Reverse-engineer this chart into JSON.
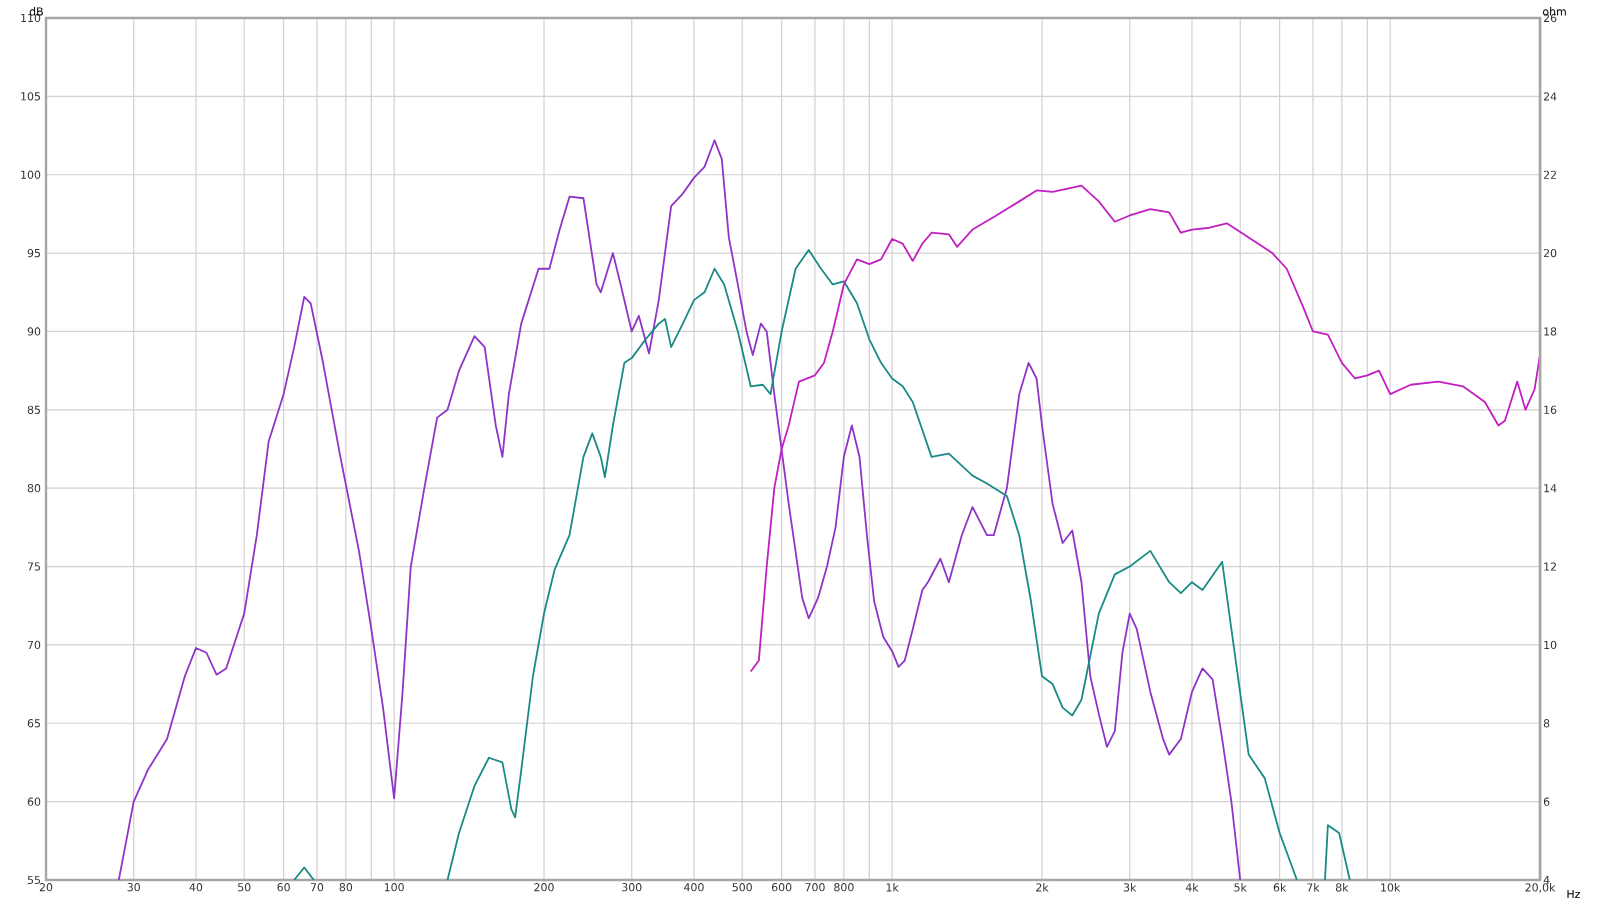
{
  "chart_data": {
    "type": "line",
    "xlabel": "Hz",
    "ylabel": "dB",
    "y2label": "ohm",
    "log": "x",
    "grid": true,
    "xlim": [
      20,
      20000
    ],
    "ylim": [
      55,
      110
    ],
    "y2lim": [
      4,
      26
    ],
    "xticks": [
      20,
      30,
      40,
      50,
      60,
      70,
      80,
      {
        "value": 90,
        "label": null
      },
      100,
      200,
      300,
      400,
      500,
      600,
      700,
      800,
      {
        "value": 900,
        "label": null
      },
      {
        "value": 1000,
        "label": "1k"
      },
      {
        "value": 2000,
        "label": "2k"
      },
      {
        "value": 3000,
        "label": "3k"
      },
      {
        "value": 4000,
        "label": "4k"
      },
      {
        "value": 5000,
        "label": "5k"
      },
      {
        "value": 6000,
        "label": "6k"
      },
      {
        "value": 7000,
        "label": "7k"
      },
      {
        "value": 8000,
        "label": "8k"
      },
      {
        "value": 9000,
        "label": null
      },
      {
        "value": 10000,
        "label": "10k"
      },
      {
        "value": 20000,
        "label": "20,0k"
      }
    ],
    "yticks": [
      55,
      60,
      65,
      70,
      75,
      80,
      85,
      90,
      95,
      100,
      105,
      110
    ],
    "y2ticks": [
      4,
      6,
      8,
      10,
      12,
      14,
      16,
      18,
      20,
      22,
      24,
      26
    ],
    "series": [
      {
        "color": "#8e35c8",
        "x": [
          28,
          30,
          32,
          35,
          38,
          40,
          42,
          44,
          46,
          50,
          53,
          56,
          60,
          63,
          66,
          68,
          72,
          78,
          85,
          90,
          95,
          100,
          104,
          108,
          115,
          122,
          128,
          135,
          145,
          152,
          160,
          165,
          170,
          180,
          195,
          205,
          215,
          225,
          240,
          255,
          260,
          275,
          285,
          300,
          310,
          325,
          340,
          360,
          380,
          400,
          420,
          440,
          455,
          470,
          490,
          510,
          525,
          545,
          560,
          580,
          620,
          660,
          680,
          710,
          740,
          770,
          800,
          830,
          860,
          890,
          920,
          960,
          1000,
          1030,
          1060,
          1100,
          1150,
          1180,
          1250,
          1300,
          1380,
          1450,
          1550,
          1600,
          1700,
          1800,
          1880,
          1950,
          2000,
          2100,
          2200,
          2300,
          2400,
          2500,
          2600,
          2700,
          2800,
          2900,
          3000,
          3100,
          3300,
          3500,
          3600,
          3800,
          4000,
          4200,
          4400,
          4600,
          4800,
          5000
        ],
        "values": [
          55,
          60,
          62,
          64,
          68,
          69.8,
          69.5,
          68.1,
          68.5,
          72,
          77,
          83,
          86,
          89,
          92.2,
          91.8,
          88,
          82,
          76,
          71,
          66,
          60.2,
          67,
          75,
          80,
          84.5,
          85,
          87.5,
          89.7,
          89,
          84,
          82,
          86,
          90.5,
          94,
          94,
          96.5,
          98.6,
          98.5,
          93,
          92.5,
          95,
          93,
          90,
          91,
          88.6,
          92,
          98,
          98.8,
          99.8,
          100.5,
          102.2,
          101,
          96,
          93,
          90,
          88.5,
          90.5,
          90,
          86,
          79,
          73,
          71.7,
          73,
          75,
          77.5,
          82,
          84,
          82,
          77,
          72.8,
          70.5,
          69.6,
          68.6,
          69,
          71,
          73.5,
          74,
          75.5,
          74,
          77,
          78.8,
          77,
          77,
          80,
          86,
          88,
          87,
          84,
          79,
          76.5,
          77.3,
          74,
          68,
          65.6,
          63.5,
          64.5,
          69.5,
          72,
          71,
          67,
          64,
          63,
          64,
          67,
          68.5,
          67.8,
          64,
          60,
          55
        ]
      },
      {
        "color": "#1a8a84",
        "x": [
          63,
          66,
          69,
          100,
          128,
          135,
          145,
          155,
          165,
          172,
          175,
          180,
          190,
          200,
          210,
          225,
          240,
          250,
          260,
          265,
          275,
          290,
          300,
          320,
          340,
          350,
          360,
          380,
          400,
          420,
          440,
          460,
          490,
          520,
          550,
          570,
          600,
          640,
          680,
          720,
          760,
          800,
          850,
          900,
          950,
          1000,
          1050,
          1100,
          1200,
          1300,
          1450,
          1550,
          1700,
          1800,
          1900,
          2000,
          2100,
          2200,
          2300,
          2400,
          2600,
          2800,
          3000,
          3300,
          3600,
          3800,
          4000,
          4200,
          4600,
          4800,
          5200,
          5600,
          6000,
          6500,
          7000,
          7400,
          7500,
          7900,
          8300
        ],
        "values": [
          55,
          55.8,
          55,
          null,
          55,
          58,
          61,
          62.8,
          62.5,
          59.5,
          59,
          62,
          68,
          72,
          74.8,
          77,
          82,
          83.5,
          82,
          80.7,
          84,
          88,
          88.3,
          89.5,
          90.5,
          90.8,
          89,
          90.5,
          92,
          92.5,
          94,
          93,
          90,
          86.5,
          86.6,
          86,
          90,
          94,
          95.2,
          94,
          93,
          93.2,
          91.8,
          89.5,
          88,
          87,
          86.5,
          85.5,
          82,
          82.2,
          80.8,
          80.3,
          79.5,
          77,
          72.8,
          68,
          67.5,
          66,
          65.5,
          66.5,
          72,
          74.5,
          75,
          76,
          74,
          73.3,
          74,
          73.5,
          75.3,
          71,
          63,
          61.5,
          58,
          55,
          null,
          55,
          58.5,
          58,
          55
        ]
      },
      {
        "color": "#c21fc2",
        "x": [
          520,
          540,
          560,
          580,
          600,
          620,
          650,
          700,
          730,
          760,
          800,
          850,
          900,
          950,
          1000,
          1050,
          1100,
          1150,
          1200,
          1300,
          1350,
          1450,
          1600,
          1800,
          1950,
          2100,
          2400,
          2600,
          2800,
          3000,
          3300,
          3600,
          3800,
          4000,
          4300,
          4700,
          5200,
          5800,
          6200,
          6700,
          7000,
          7500,
          8000,
          8500,
          9000,
          9500,
          10000,
          11000,
          12500,
          14000,
          15500,
          16500,
          17000,
          18000,
          18700,
          19500,
          20000
        ],
        "values": [
          68.3,
          69,
          75,
          80,
          82.5,
          84,
          86.8,
          87.2,
          88,
          90,
          93,
          94.6,
          94.3,
          94.6,
          95.9,
          95.6,
          94.5,
          95.6,
          96.3,
          96.2,
          95.4,
          96.5,
          97.3,
          98.3,
          99,
          98.9,
          99.3,
          98.3,
          97,
          97.4,
          97.8,
          97.6,
          96.3,
          96.5,
          96.6,
          96.9,
          96,
          95,
          94,
          91.5,
          90,
          89.8,
          88,
          87,
          87.2,
          87.5,
          86,
          86.6,
          86.8,
          86.5,
          85.5,
          84,
          84.3,
          86.8,
          85,
          86.3,
          88.5
        ]
      }
    ]
  }
}
